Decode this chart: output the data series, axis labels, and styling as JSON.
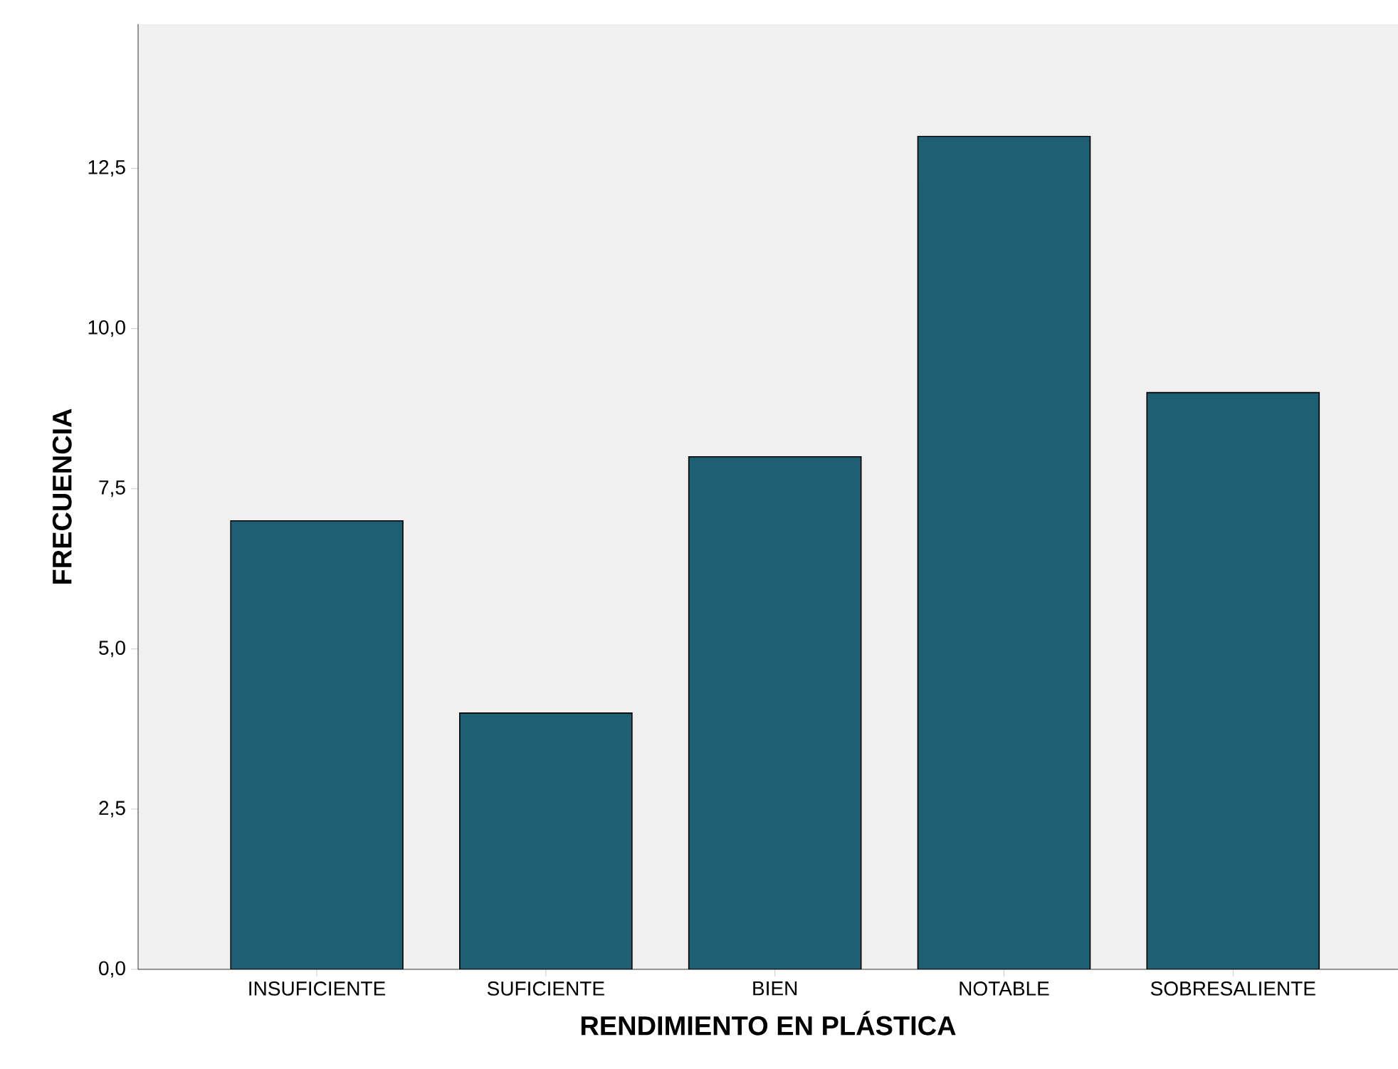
{
  "chart_data": {
    "type": "bar",
    "xlabel": "RENDIMIENTO EN PLÁSTICA",
    "ylabel": "FRECUENCIA",
    "categories": [
      "INSUFICIENTE",
      "SUFICIENTE",
      "BIEN",
      "NOTABLE",
      "SOBRESALIENTE"
    ],
    "values": [
      7,
      4,
      8,
      13,
      9
    ],
    "color": "#1f5f73",
    "ylim": [
      0,
      14.75
    ],
    "yticks": [
      {
        "value": 0,
        "label": "0,0"
      },
      {
        "value": 2.5,
        "label": "2,5"
      },
      {
        "value": 5,
        "label": "5,0"
      },
      {
        "value": 7.5,
        "label": "7,5"
      },
      {
        "value": 10,
        "label": "10,0"
      },
      {
        "value": 12.5,
        "label": "12,5"
      }
    ],
    "grid": false
  }
}
